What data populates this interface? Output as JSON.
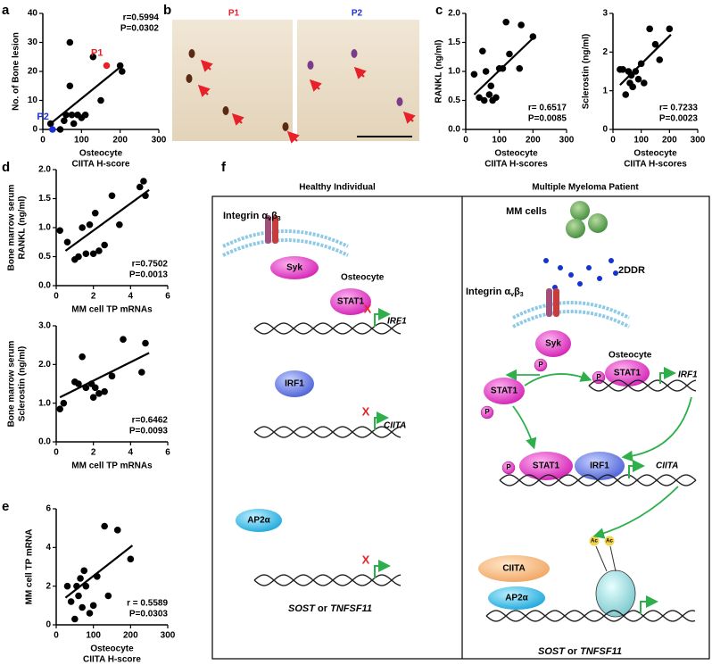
{
  "chart_data": [
    {
      "type": "scatter",
      "panel": "a",
      "ylabel": [
        "No. of Bone lesion"
      ],
      "xlabel": [
        "Osteocyte",
        "CIITA H-score"
      ],
      "xlim": [
        0,
        300
      ],
      "xticks": [
        0,
        100,
        200,
        300
      ],
      "ylim": [
        0,
        40
      ],
      "yticks": [
        0,
        10,
        20,
        30,
        40
      ],
      "annotations": [
        "r=0.5994",
        "P=0.0302"
      ],
      "series": [
        {
          "color": "#000000",
          "x": [
            20,
            45,
            55,
            60,
            70,
            70,
            75,
            80,
            90,
            100,
            110,
            130,
            150,
            200,
            205
          ],
          "values": [
            2,
            0,
            3,
            5,
            30,
            15,
            5,
            2,
            5,
            4,
            5,
            25,
            10,
            22,
            20
          ]
        },
        {
          "name": "P1",
          "color": "#e8202a",
          "x": [
            165
          ],
          "values": [
            22
          ]
        },
        {
          "name": "P2",
          "color": "#1f2fd8",
          "x": [
            25
          ],
          "values": [
            0
          ]
        }
      ],
      "trendline": {
        "x": [
          20,
          205
        ],
        "values": [
          2,
          22
        ]
      }
    },
    {
      "type": "scatter",
      "panel": "c",
      "ylabel": [
        "RANKL (ng/ml)"
      ],
      "xlabel": [
        "Osteocyte",
        "CIITA H-scores"
      ],
      "xlim": [
        0,
        300
      ],
      "xticks": [
        0,
        100,
        200,
        300
      ],
      "ylim": [
        0,
        2
      ],
      "yticks": [
        {
          "value": 0,
          "label": "0.0"
        },
        {
          "value": 0.5,
          "label": "0.5"
        },
        {
          "value": 1,
          "label": "1.0"
        },
        {
          "value": 1.5,
          "label": "1.5"
        },
        {
          "value": 2,
          "label": "2.0"
        }
      ],
      "annotations": [
        "r= 0.6517",
        "P=0.0085"
      ],
      "series": [
        {
          "color": "#000000",
          "x": [
            25,
            40,
            50,
            55,
            60,
            70,
            75,
            80,
            90,
            100,
            110,
            120,
            130,
            160,
            165,
            200
          ],
          "values": [
            0.95,
            0.55,
            1.35,
            0.5,
            1.0,
            0.6,
            0.75,
            0.5,
            0.55,
            1.05,
            1.05,
            1.85,
            1.3,
            1.05,
            1.8,
            1.6
          ]
        }
      ],
      "trendline": {
        "x": [
          25,
          205
        ],
        "values": [
          0.6,
          1.6
        ]
      }
    },
    {
      "type": "scatter",
      "ylabel": [
        "Sclerostin (ng/ml)"
      ],
      "xlabel": [
        "Osteocyte",
        "CIITA H-scores"
      ],
      "xlim": [
        0,
        300
      ],
      "xticks": [
        0,
        100,
        200,
        300
      ],
      "ylim": [
        0,
        3
      ],
      "yticks": [
        0,
        1,
        2,
        3
      ],
      "annotations": [
        "r= 0.7233",
        "P=0.0023"
      ],
      "series": [
        {
          "color": "#000000",
          "x": [
            25,
            35,
            45,
            55,
            60,
            65,
            70,
            80,
            90,
            100,
            110,
            130,
            150,
            165,
            200
          ],
          "values": [
            1.55,
            1.55,
            0.9,
            1.5,
            1.2,
            1.4,
            1.1,
            1.5,
            1.3,
            1.7,
            1.2,
            2.6,
            2.2,
            1.8,
            2.6
          ]
        }
      ],
      "trendline": {
        "x": [
          25,
          205
        ],
        "values": [
          1.15,
          2.45
        ]
      }
    },
    {
      "type": "scatter",
      "panel": "d",
      "ylabel": [
        "Bone marrow serum",
        "RANKL (ng/ml)"
      ],
      "xlabel": [
        "MM cell TP mRNAs"
      ],
      "xlim": [
        0,
        6
      ],
      "xticks": [
        0,
        2,
        4,
        6
      ],
      "ylim": [
        0,
        2
      ],
      "yticks": [
        {
          "value": 0,
          "label": "0.0"
        },
        {
          "value": 0.5,
          "label": "0.5"
        },
        {
          "value": 1,
          "label": "1.0"
        },
        {
          "value": 1.5,
          "label": "1.5"
        },
        {
          "value": 2,
          "label": "2.0"
        }
      ],
      "annotations": [
        "r=0.7502",
        "P=0.0013"
      ],
      "series": [
        {
          "color": "#000000",
          "x": [
            0.2,
            0.6,
            1.0,
            1.2,
            1.4,
            1.6,
            1.8,
            2.0,
            2.1,
            2.3,
            2.6,
            3.0,
            3.4,
            4.5,
            4.7,
            4.8
          ],
          "values": [
            0.95,
            0.75,
            0.45,
            0.5,
            1.0,
            0.55,
            1.05,
            0.55,
            1.25,
            0.6,
            0.7,
            1.55,
            1.05,
            1.7,
            1.8,
            1.55
          ]
        }
      ],
      "trendline": {
        "x": [
          0.5,
          5
        ],
        "values": [
          0.6,
          1.65
        ]
      }
    },
    {
      "type": "scatter",
      "ylabel": [
        "Bone marrow serum",
        "Sclerostin (ng/ml)"
      ],
      "xlabel": [
        "MM cell TP mRNAs"
      ],
      "xlim": [
        0,
        6
      ],
      "xticks": [
        0,
        2,
        4,
        6
      ],
      "ylim": [
        0,
        3
      ],
      "yticks": [
        {
          "value": 0,
          "label": "0.0"
        },
        {
          "value": 1,
          "label": "1.0"
        },
        {
          "value": 2,
          "label": "2.0"
        },
        {
          "value": 3,
          "label": "3.0"
        }
      ],
      "annotations": [
        "r=0.6462",
        "P=0.0093"
      ],
      "series": [
        {
          "color": "#000000",
          "x": [
            0.2,
            0.4,
            1.0,
            1.2,
            1.4,
            1.6,
            1.9,
            2.0,
            2.1,
            2.3,
            2.6,
            3.0,
            3.6,
            4.6,
            4.8
          ],
          "values": [
            0.85,
            1.0,
            1.55,
            1.5,
            2.2,
            1.4,
            1.5,
            1.15,
            1.4,
            1.25,
            1.3,
            1.7,
            2.65,
            1.8,
            2.55
          ]
        }
      ],
      "trendline": {
        "x": [
          0.2,
          5
        ],
        "values": [
          1.15,
          2.3
        ]
      }
    },
    {
      "type": "scatter",
      "panel": "e",
      "ylabel": [
        "MM cell TP mRNA"
      ],
      "xlabel": [
        "Osteocyte",
        "CIITA H-score"
      ],
      "xlim": [
        0,
        300
      ],
      "xticks": [
        0,
        100,
        200,
        300
      ],
      "ylim": [
        0,
        6
      ],
      "yticks": [
        0,
        2,
        4,
        6
      ],
      "annotations": [
        "r = 0.5589",
        "P=0.0303"
      ],
      "series": [
        {
          "color": "#000000",
          "x": [
            30,
            40,
            50,
            55,
            60,
            65,
            70,
            75,
            80,
            90,
            100,
            110,
            130,
            140,
            165,
            200
          ],
          "values": [
            2.0,
            1.2,
            0.3,
            2.0,
            1.5,
            2.4,
            0.9,
            2.8,
            2.0,
            0.6,
            1.0,
            2.5,
            5.1,
            1.5,
            4.9,
            3.4
          ]
        }
      ],
      "trendline": {
        "x": [
          25,
          205
        ],
        "values": [
          1.4,
          4.1
        ]
      }
    }
  ],
  "micrographs": {
    "panel": "b",
    "images": [
      "P1",
      "P2"
    ]
  },
  "diagram": {
    "panel": "f",
    "left": {
      "title": "Healthy Individual",
      "integrin": [
        "Integrin α",
        "v",
        "β",
        "3"
      ],
      "syk": "Syk",
      "osteocyte": "Osteocyte",
      "stat1": "STAT1",
      "block1": "X",
      "gene1": "IRF1",
      "irf1": "IRF1",
      "block2": "X",
      "gene2": "CIITA",
      "ap2": "AP2α",
      "block3": "X",
      "gene3": [
        "SOST",
        " or ",
        "TNFSF11"
      ]
    },
    "right": {
      "title": "Multiple Myeloma Patient",
      "mm": "MM cells",
      "ddr": "2DDR",
      "integrin": [
        "Integrin α",
        "v",
        "β",
        "3"
      ],
      "syk": "Syk",
      "p1": "P",
      "osteocyte": "Osteocyte",
      "stat1a": "STAT1",
      "p2": "P",
      "p3": "P",
      "stat1b": "STAT1",
      "gene1": "IRF1",
      "p4": "P",
      "stat1c": "STAT1",
      "irf1": "IRF1",
      "gene2": "CIITA",
      "ciita": "CIITA",
      "ap2": "AP2α",
      "ac1": "Ac",
      "ac2": "Ac",
      "gene3": [
        "SOST",
        " or ",
        "TNFSF11"
      ]
    }
  }
}
